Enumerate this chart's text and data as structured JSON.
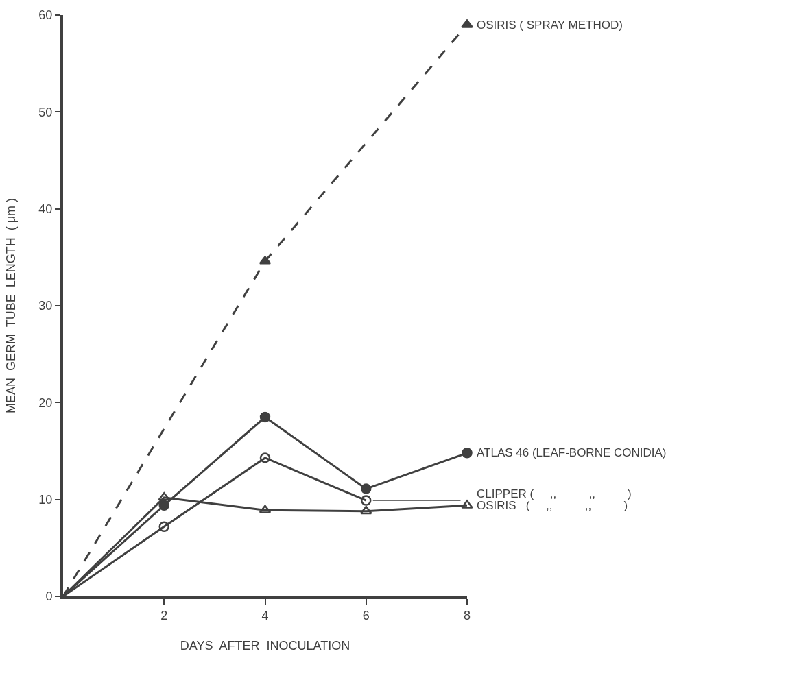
{
  "chart_data": {
    "type": "line",
    "xlabel": "DAYS  AFTER  INOCULATION",
    "ylabel": "MEAN  GERM  TUBE  LENGTH  ( μm )",
    "xlim": [
      0,
      8
    ],
    "xticks": [
      2,
      4,
      6,
      8
    ],
    "ylim": [
      0,
      60
    ],
    "yticks": [
      0,
      10,
      20,
      30,
      40,
      50,
      60
    ],
    "legend": false,
    "series": [
      {
        "name": "OSIRIS ( SPRAY METHOD)",
        "color": "#404040",
        "x": [
          0,
          4,
          8
        ],
        "values": [
          0,
          34.6,
          59.0
        ],
        "marker": "triangle",
        "line_style": "dashed"
      },
      {
        "name": "ATLAS 46 (LEAF-BORNE CONIDIA)",
        "color": "#404040",
        "x": [
          0,
          2,
          4,
          6,
          8
        ],
        "values": [
          0,
          9.4,
          18.5,
          11.1,
          14.8
        ],
        "marker": "circle",
        "line_style": "solid"
      },
      {
        "name": "CLIPPER (     ,,          ,,          )",
        "color": "#404040",
        "x": [
          0,
          2,
          4,
          6
        ],
        "values": [
          0,
          7.2,
          14.3,
          9.9
        ],
        "marker": "circle-open",
        "line_style": "solid"
      },
      {
        "name": "OSIRIS   (     ,,          ,,          )",
        "color": "#404040",
        "x": [
          0,
          2,
          4,
          6,
          8
        ],
        "values": [
          0,
          10.2,
          8.9,
          8.8,
          9.4
        ],
        "marker": "triangle-open",
        "line_style": "solid"
      }
    ]
  }
}
